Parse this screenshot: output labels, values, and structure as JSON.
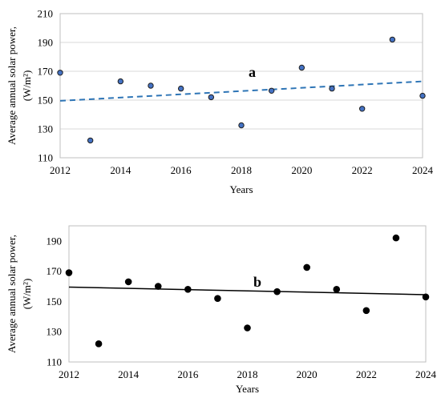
{
  "chart_data": [
    {
      "type": "scatter",
      "panel_label": "a",
      "x": [
        2012,
        2013,
        2014,
        2015,
        2016,
        2017,
        2018,
        2019,
        2020,
        2021,
        2022,
        2023,
        2024
      ],
      "y": [
        169,
        122,
        163,
        160,
        158,
        152,
        132.5,
        156.5,
        172.5,
        158,
        144,
        192,
        153
      ],
      "trendline": {
        "style": "dashed",
        "from": [
          2012,
          149.5
        ],
        "to": [
          2024,
          163
        ]
      },
      "xlabel": "Years",
      "ylabel_line1": "Average annual solar power,",
      "ylabel_line2": "(W/m²)",
      "xlim": [
        2012,
        2024
      ],
      "ylim": [
        110,
        210
      ],
      "xticks": [
        2012,
        2014,
        2016,
        2018,
        2020,
        2022,
        2024
      ],
      "yticks": [
        110,
        130,
        150,
        170,
        190,
        210
      ],
      "grid": true,
      "colors": {
        "marker_fill": "#4472c4",
        "marker_edge": "#1f1f1f",
        "trendline": "#2e75b6"
      }
    },
    {
      "type": "scatter",
      "panel_label": "b",
      "x": [
        2012,
        2013,
        2014,
        2015,
        2016,
        2017,
        2018,
        2019,
        2020,
        2021,
        2022,
        2023,
        2024
      ],
      "y": [
        169,
        122,
        163,
        160,
        158,
        152,
        132.5,
        156.5,
        172.5,
        158,
        144,
        192,
        153
      ],
      "trendline": {
        "style": "solid",
        "from": [
          2012,
          159.5
        ],
        "to": [
          2024,
          154.5
        ]
      },
      "xlabel": "Years",
      "ylabel_line1": "Average annual solar power,",
      "ylabel_line2": "(W/m²)",
      "xlim": [
        2012,
        2024
      ],
      "ylim": [
        110,
        200
      ],
      "xticks": [
        2012,
        2014,
        2016,
        2018,
        2020,
        2022,
        2024
      ],
      "yticks": [
        110,
        130,
        150,
        170,
        190
      ],
      "grid": false,
      "colors": {
        "marker_fill": "#000000",
        "marker_edge": "#000000",
        "trendline": "#000000"
      }
    }
  ]
}
